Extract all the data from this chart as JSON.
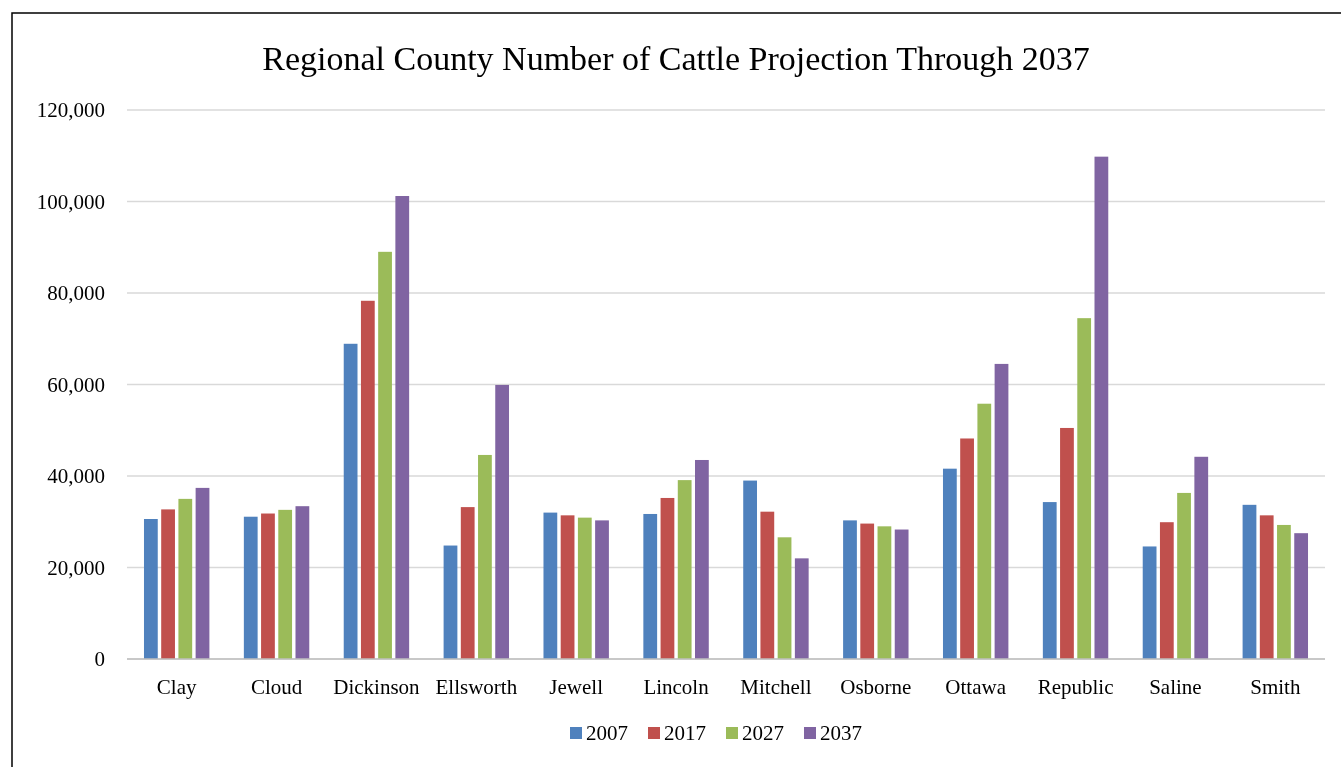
{
  "chart_data": {
    "type": "bar",
    "title": "Regional County Number of Cattle Projection Through 2037",
    "categories": [
      "Clay",
      "Cloud",
      "Dickinson",
      "Ellsworth",
      "Jewell",
      "Lincoln",
      "Mitchell",
      "Osborne",
      "Ottawa",
      "Republic",
      "Saline",
      "Smith"
    ],
    "series": [
      {
        "name": "2007",
        "color": "#4f81bd",
        "values": [
          30600,
          31100,
          68900,
          24800,
          32000,
          31700,
          39000,
          30300,
          41600,
          34300,
          24600,
          33700
        ]
      },
      {
        "name": "2017",
        "color": "#c0504d",
        "values": [
          32700,
          31800,
          78300,
          33200,
          31400,
          35200,
          32200,
          29600,
          48200,
          50500,
          29900,
          31400
        ]
      },
      {
        "name": "2027",
        "color": "#9bbb59",
        "values": [
          35000,
          32600,
          89000,
          44600,
          30900,
          39100,
          26600,
          29000,
          55800,
          74500,
          36300,
          29300
        ]
      },
      {
        "name": "2037",
        "color": "#8064a2",
        "values": [
          37400,
          33400,
          101200,
          59900,
          30300,
          43500,
          22000,
          28300,
          64500,
          109800,
          44200,
          27500
        ]
      }
    ],
    "ylim": [
      0,
      120000
    ],
    "yticks": [
      {
        "value": 0,
        "label": "0"
      },
      {
        "value": 20000,
        "label": "20,000"
      },
      {
        "value": 40000,
        "label": "40,000"
      },
      {
        "value": 60000,
        "label": "60,000"
      },
      {
        "value": 80000,
        "label": "80,000"
      },
      {
        "value": 100000,
        "label": "100,000"
      },
      {
        "value": 120000,
        "label": "120,000"
      }
    ],
    "grid": "y",
    "legend": "bottom"
  }
}
